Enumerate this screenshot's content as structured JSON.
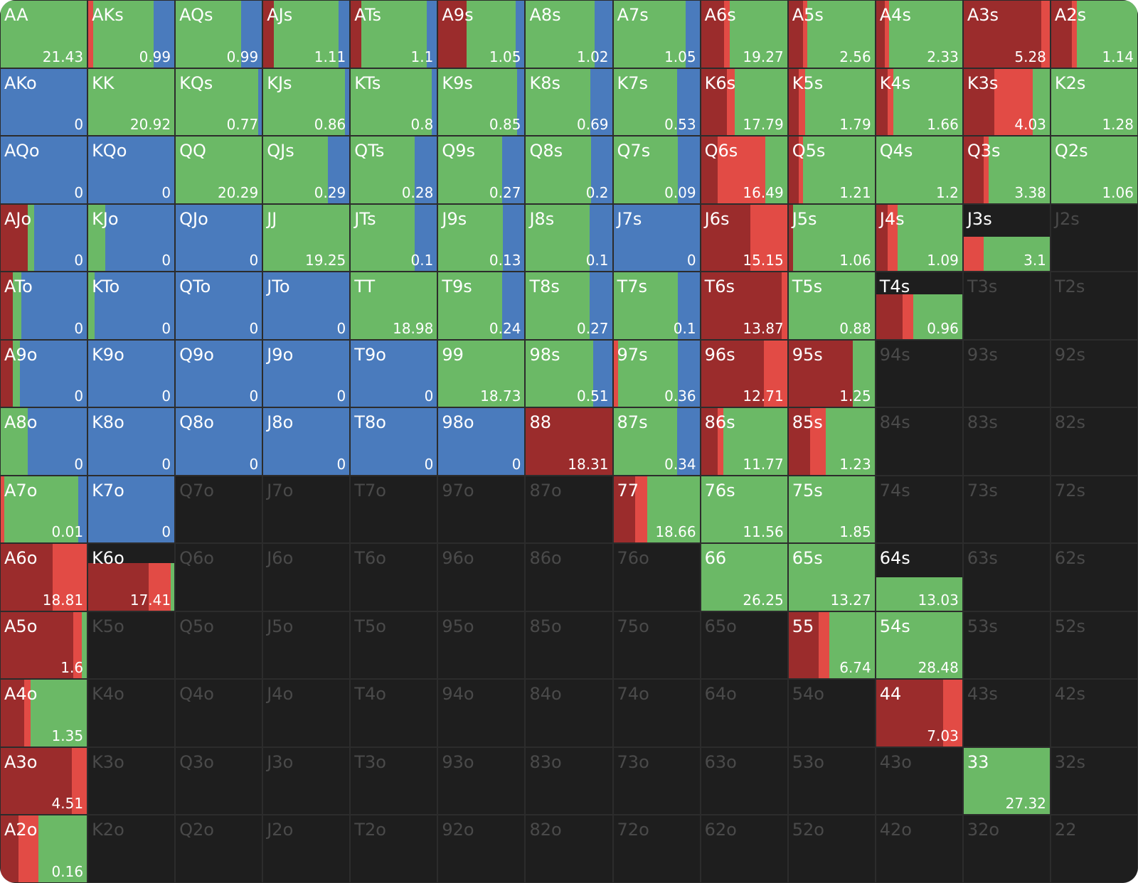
{
  "colors": [
    "#9b2c2c",
    "#e24b45",
    "#6bb966",
    "#4a7bbd"
  ],
  "rows": [
    [
      {
        "label": "AA",
        "value": 21.43,
        "mix": [
          0,
          0,
          100,
          0
        ]
      },
      {
        "label": "AKs",
        "value": 0.99,
        "mix": [
          0,
          6,
          70,
          24
        ]
      },
      {
        "label": "AQs",
        "value": 0.99,
        "mix": [
          0,
          0,
          76,
          24
        ]
      },
      {
        "label": "AJs",
        "value": 1.11,
        "mix": [
          12,
          0,
          75,
          13
        ]
      },
      {
        "label": "ATs",
        "value": 1.1,
        "mix": [
          12,
          0,
          76,
          12
        ]
      },
      {
        "label": "A9s",
        "value": 1.05,
        "mix": [
          33,
          0,
          57,
          10
        ]
      },
      {
        "label": "A8s",
        "value": 1.02,
        "mix": [
          0,
          0,
          80,
          20
        ]
      },
      {
        "label": "A7s",
        "value": 1.05,
        "mix": [
          0,
          0,
          84,
          16
        ]
      },
      {
        "label": "A6s",
        "value": 19.27,
        "mix": [
          27,
          6,
          67,
          0
        ]
      },
      {
        "label": "A5s",
        "value": 2.56,
        "mix": [
          17,
          5,
          78,
          0
        ]
      },
      {
        "label": "A4s",
        "value": 2.33,
        "mix": [
          10,
          5,
          85,
          0
        ]
      },
      {
        "label": "A3s",
        "value": 5.28,
        "mix": [
          90,
          10,
          0,
          0
        ]
      },
      {
        "label": "A2s",
        "value": 1.14,
        "mix": [
          24,
          6,
          70,
          0
        ]
      }
    ],
    [
      {
        "label": "AKo",
        "value": 0,
        "mix": [
          0,
          0,
          0,
          100
        ]
      },
      {
        "label": "KK",
        "value": 20.92,
        "mix": [
          0,
          0,
          100,
          0
        ]
      },
      {
        "label": "KQs",
        "value": 0.77,
        "mix": [
          0,
          0,
          96,
          4
        ]
      },
      {
        "label": "KJs",
        "value": 0.86,
        "mix": [
          0,
          0,
          95,
          5
        ]
      },
      {
        "label": "KTs",
        "value": 0.8,
        "mix": [
          0,
          0,
          94,
          6
        ]
      },
      {
        "label": "K9s",
        "value": 0.85,
        "mix": [
          0,
          0,
          91,
          9
        ]
      },
      {
        "label": "K8s",
        "value": 0.69,
        "mix": [
          0,
          0,
          75,
          25
        ]
      },
      {
        "label": "K7s",
        "value": 0.53,
        "mix": [
          0,
          0,
          74,
          26
        ]
      },
      {
        "label": "K6s",
        "value": 17.79,
        "mix": [
          30,
          9,
          61,
          0
        ]
      },
      {
        "label": "K5s",
        "value": 1.79,
        "mix": [
          12,
          7,
          81,
          0
        ]
      },
      {
        "label": "K4s",
        "value": 1.66,
        "mix": [
          13,
          7,
          80,
          0
        ]
      },
      {
        "label": "K3s",
        "value": 4.03,
        "mix": [
          36,
          44,
          20,
          0
        ]
      },
      {
        "label": "K2s",
        "value": 1.28,
        "mix": [
          0,
          0,
          100,
          0
        ]
      }
    ],
    [
      {
        "label": "AQo",
        "value": 0,
        "mix": [
          0,
          0,
          0,
          100
        ]
      },
      {
        "label": "KQo",
        "value": 0,
        "mix": [
          0,
          0,
          0,
          100
        ]
      },
      {
        "label": "QQ",
        "value": 20.29,
        "mix": [
          0,
          0,
          100,
          0
        ]
      },
      {
        "label": "QJs",
        "value": 0.29,
        "mix": [
          0,
          0,
          75,
          25
        ]
      },
      {
        "label": "QTs",
        "value": 0.28,
        "mix": [
          0,
          0,
          74,
          26
        ]
      },
      {
        "label": "Q9s",
        "value": 0.27,
        "mix": [
          0,
          0,
          74,
          26
        ]
      },
      {
        "label": "Q8s",
        "value": 0.2,
        "mix": [
          0,
          0,
          76,
          24
        ]
      },
      {
        "label": "Q7s",
        "value": 0.09,
        "mix": [
          0,
          0,
          75,
          25
        ]
      },
      {
        "label": "Q6s",
        "value": 16.49,
        "mix": [
          19,
          56,
          25,
          0
        ]
      },
      {
        "label": "Q5s",
        "value": 1.21,
        "mix": [
          12,
          5,
          83,
          0
        ]
      },
      {
        "label": "Q4s",
        "value": 1.2,
        "mix": [
          0,
          0,
          100,
          0
        ]
      },
      {
        "label": "Q3s",
        "value": 3.38,
        "mix": [
          23,
          6,
          71,
          0
        ]
      },
      {
        "label": "Q2s",
        "value": 1.06,
        "mix": [
          0,
          0,
          100,
          0
        ]
      }
    ],
    [
      {
        "label": "AJo",
        "value": 0,
        "mix": [
          31,
          0,
          8,
          61
        ]
      },
      {
        "label": "KJo",
        "value": 0,
        "mix": [
          0,
          0,
          20,
          80
        ]
      },
      {
        "label": "QJo",
        "value": 0,
        "mix": [
          0,
          0,
          0,
          100
        ]
      },
      {
        "label": "JJ",
        "value": 19.25,
        "mix": [
          0,
          0,
          100,
          0
        ]
      },
      {
        "label": "JTs",
        "value": 0.1,
        "mix": [
          0,
          0,
          74,
          26
        ]
      },
      {
        "label": "J9s",
        "value": 0.13,
        "mix": [
          0,
          0,
          75,
          25
        ]
      },
      {
        "label": "J8s",
        "value": 0.1,
        "mix": [
          0,
          0,
          74,
          26
        ]
      },
      {
        "label": "J7s",
        "value": 0,
        "mix": [
          0,
          0,
          0,
          100
        ]
      },
      {
        "label": "J6s",
        "value": 15.15,
        "mix": [
          57,
          43,
          0,
          0
        ]
      },
      {
        "label": "J5s",
        "value": 1.06,
        "mix": [
          5,
          0,
          95,
          0
        ]
      },
      {
        "label": "J4s",
        "value": 1.09,
        "mix": [
          13,
          12,
          75,
          0
        ]
      },
      {
        "label": "J3s",
        "value": 3.1,
        "mix": [
          0,
          23,
          77,
          0
        ],
        "fill": 52
      },
      {
        "label": "J2s"
      }
    ],
    [
      {
        "label": "ATo",
        "value": 0,
        "mix": [
          14,
          0,
          10,
          76
        ]
      },
      {
        "label": "KTo",
        "value": 0,
        "mix": [
          0,
          0,
          7,
          93
        ]
      },
      {
        "label": "QTo",
        "value": 0,
        "mix": [
          0,
          0,
          0,
          100
        ]
      },
      {
        "label": "JTo",
        "value": 0,
        "mix": [
          0,
          0,
          0,
          100
        ]
      },
      {
        "label": "TT",
        "value": 18.98,
        "mix": [
          0,
          0,
          100,
          0
        ]
      },
      {
        "label": "T9s",
        "value": 0.24,
        "mix": [
          0,
          0,
          74,
          26
        ]
      },
      {
        "label": "T8s",
        "value": 0.27,
        "mix": [
          0,
          0,
          74,
          26
        ]
      },
      {
        "label": "T7s",
        "value": 0.1,
        "mix": [
          0,
          0,
          75,
          25
        ]
      },
      {
        "label": "T6s",
        "value": 13.87,
        "mix": [
          94,
          6,
          0,
          0
        ]
      },
      {
        "label": "T5s",
        "value": 0.88,
        "mix": [
          0,
          0,
          100,
          0
        ]
      },
      {
        "label": "T4s",
        "value": 0.96,
        "mix": [
          31,
          12,
          57,
          0
        ],
        "fill": 67
      },
      {
        "label": "T3s"
      },
      {
        "label": "T2s"
      }
    ],
    [
      {
        "label": "A9o",
        "value": 0,
        "mix": [
          14,
          0,
          8,
          78
        ]
      },
      {
        "label": "K9o",
        "value": 0,
        "mix": [
          0,
          0,
          0,
          100
        ]
      },
      {
        "label": "Q9o",
        "value": 0,
        "mix": [
          0,
          0,
          0,
          100
        ]
      },
      {
        "label": "J9o",
        "value": 0,
        "mix": [
          0,
          0,
          0,
          100
        ]
      },
      {
        "label": "T9o",
        "value": 0,
        "mix": [
          0,
          0,
          0,
          100
        ]
      },
      {
        "label": "99",
        "value": 18.73,
        "mix": [
          0,
          0,
          100,
          0
        ]
      },
      {
        "label": "98s",
        "value": 0.51,
        "mix": [
          0,
          0,
          78,
          22
        ]
      },
      {
        "label": "97s",
        "value": 0.36,
        "mix": [
          0,
          5,
          70,
          25
        ]
      },
      {
        "label": "96s",
        "value": 12.71,
        "mix": [
          73,
          27,
          0,
          0
        ]
      },
      {
        "label": "95s",
        "value": 1.25,
        "mix": [
          75,
          0,
          25,
          0
        ]
      },
      {
        "label": "94s"
      },
      {
        "label": "93s"
      },
      {
        "label": "92s"
      }
    ],
    [
      {
        "label": "A8o",
        "value": 0,
        "mix": [
          0,
          0,
          31,
          69
        ]
      },
      {
        "label": "K8o",
        "value": 0,
        "mix": [
          0,
          0,
          0,
          100
        ]
      },
      {
        "label": "Q8o",
        "value": 0,
        "mix": [
          0,
          0,
          0,
          100
        ]
      },
      {
        "label": "J8o",
        "value": 0,
        "mix": [
          0,
          0,
          0,
          100
        ]
      },
      {
        "label": "T8o",
        "value": 0,
        "mix": [
          0,
          0,
          0,
          100
        ]
      },
      {
        "label": "98o",
        "value": 0,
        "mix": [
          0,
          0,
          0,
          100
        ]
      },
      {
        "label": "88",
        "value": 18.31,
        "mix": [
          100,
          0,
          0,
          0
        ]
      },
      {
        "label": "87s",
        "value": 0.34,
        "mix": [
          0,
          0,
          74,
          26
        ]
      },
      {
        "label": "86s",
        "value": 11.77,
        "mix": [
          19,
          7,
          74,
          0
        ]
      },
      {
        "label": "85s",
        "value": 1.23,
        "mix": [
          25,
          18,
          57,
          0
        ]
      },
      {
        "label": "84s"
      },
      {
        "label": "83s"
      },
      {
        "label": "82s"
      }
    ],
    [
      {
        "label": "A7o",
        "value": 0.01,
        "mix": [
          0,
          4,
          86,
          10
        ]
      },
      {
        "label": "K7o",
        "value": 0,
        "mix": [
          0,
          0,
          0,
          100
        ]
      },
      {
        "label": "Q7o"
      },
      {
        "label": "J7o"
      },
      {
        "label": "T7o"
      },
      {
        "label": "97o"
      },
      {
        "label": "87o"
      },
      {
        "label": "77",
        "value": 18.66,
        "mix": [
          25,
          14,
          61,
          0
        ]
      },
      {
        "label": "76s",
        "value": 11.56,
        "mix": [
          0,
          0,
          100,
          0
        ]
      },
      {
        "label": "75s",
        "value": 1.85,
        "mix": [
          0,
          0,
          100,
          0
        ]
      },
      {
        "label": "74s"
      },
      {
        "label": "73s"
      },
      {
        "label": "72s"
      }
    ],
    [
      {
        "label": "A6o",
        "value": 18.81,
        "mix": [
          60,
          40,
          0,
          0
        ]
      },
      {
        "label": "K6o",
        "value": 17.41,
        "mix": [
          70,
          26,
          4,
          0
        ],
        "fill": 71
      },
      {
        "label": "Q6o"
      },
      {
        "label": "J6o"
      },
      {
        "label": "T6o"
      },
      {
        "label": "96o"
      },
      {
        "label": "86o"
      },
      {
        "label": "76o"
      },
      {
        "label": "66",
        "value": 26.25,
        "mix": [
          0,
          0,
          100,
          0
        ]
      },
      {
        "label": "65s",
        "value": 13.27,
        "mix": [
          0,
          0,
          100,
          0
        ]
      },
      {
        "label": "64s",
        "value": 13.03,
        "mix": [
          0,
          0,
          100,
          0
        ],
        "fill": 50
      },
      {
        "label": "63s"
      },
      {
        "label": "62s"
      }
    ],
    [
      {
        "label": "A5o",
        "value": 1.6,
        "mix": [
          84,
          10,
          6,
          0
        ]
      },
      {
        "label": "K5o"
      },
      {
        "label": "Q5o"
      },
      {
        "label": "J5o"
      },
      {
        "label": "T5o"
      },
      {
        "label": "95o"
      },
      {
        "label": "85o"
      },
      {
        "label": "75o"
      },
      {
        "label": "65o"
      },
      {
        "label": "55",
        "value": 6.74,
        "mix": [
          35,
          12,
          53,
          0
        ]
      },
      {
        "label": "54s",
        "value": 28.48,
        "mix": [
          0,
          0,
          100,
          0
        ]
      },
      {
        "label": "53s"
      },
      {
        "label": "52s"
      }
    ],
    [
      {
        "label": "A4o",
        "value": 1.35,
        "mix": [
          27,
          8,
          65,
          0
        ]
      },
      {
        "label": "K4o"
      },
      {
        "label": "Q4o"
      },
      {
        "label": "J4o"
      },
      {
        "label": "T4o"
      },
      {
        "label": "94o"
      },
      {
        "label": "84o"
      },
      {
        "label": "74o"
      },
      {
        "label": "64o"
      },
      {
        "label": "54o"
      },
      {
        "label": "44",
        "value": 7.03,
        "mix": [
          78,
          22,
          0,
          0
        ]
      },
      {
        "label": "43s"
      },
      {
        "label": "42s"
      }
    ],
    [
      {
        "label": "A3o",
        "value": 4.51,
        "mix": [
          83,
          17,
          0,
          0
        ]
      },
      {
        "label": "K3o"
      },
      {
        "label": "Q3o"
      },
      {
        "label": "J3o"
      },
      {
        "label": "T3o"
      },
      {
        "label": "93o"
      },
      {
        "label": "83o"
      },
      {
        "label": "73o"
      },
      {
        "label": "63o"
      },
      {
        "label": "53o"
      },
      {
        "label": "43o"
      },
      {
        "label": "33",
        "value": 27.32,
        "mix": [
          0,
          0,
          100,
          0
        ]
      },
      {
        "label": "32s"
      }
    ],
    [
      {
        "label": "A2o",
        "value": 0.16,
        "mix": [
          21,
          23,
          56,
          0
        ]
      },
      {
        "label": "K2o"
      },
      {
        "label": "Q2o"
      },
      {
        "label": "J2o"
      },
      {
        "label": "T2o"
      },
      {
        "label": "92o"
      },
      {
        "label": "82o"
      },
      {
        "label": "72o"
      },
      {
        "label": "62o"
      },
      {
        "label": "52o"
      },
      {
        "label": "42o"
      },
      {
        "label": "32o"
      },
      {
        "label": "22"
      }
    ]
  ]
}
